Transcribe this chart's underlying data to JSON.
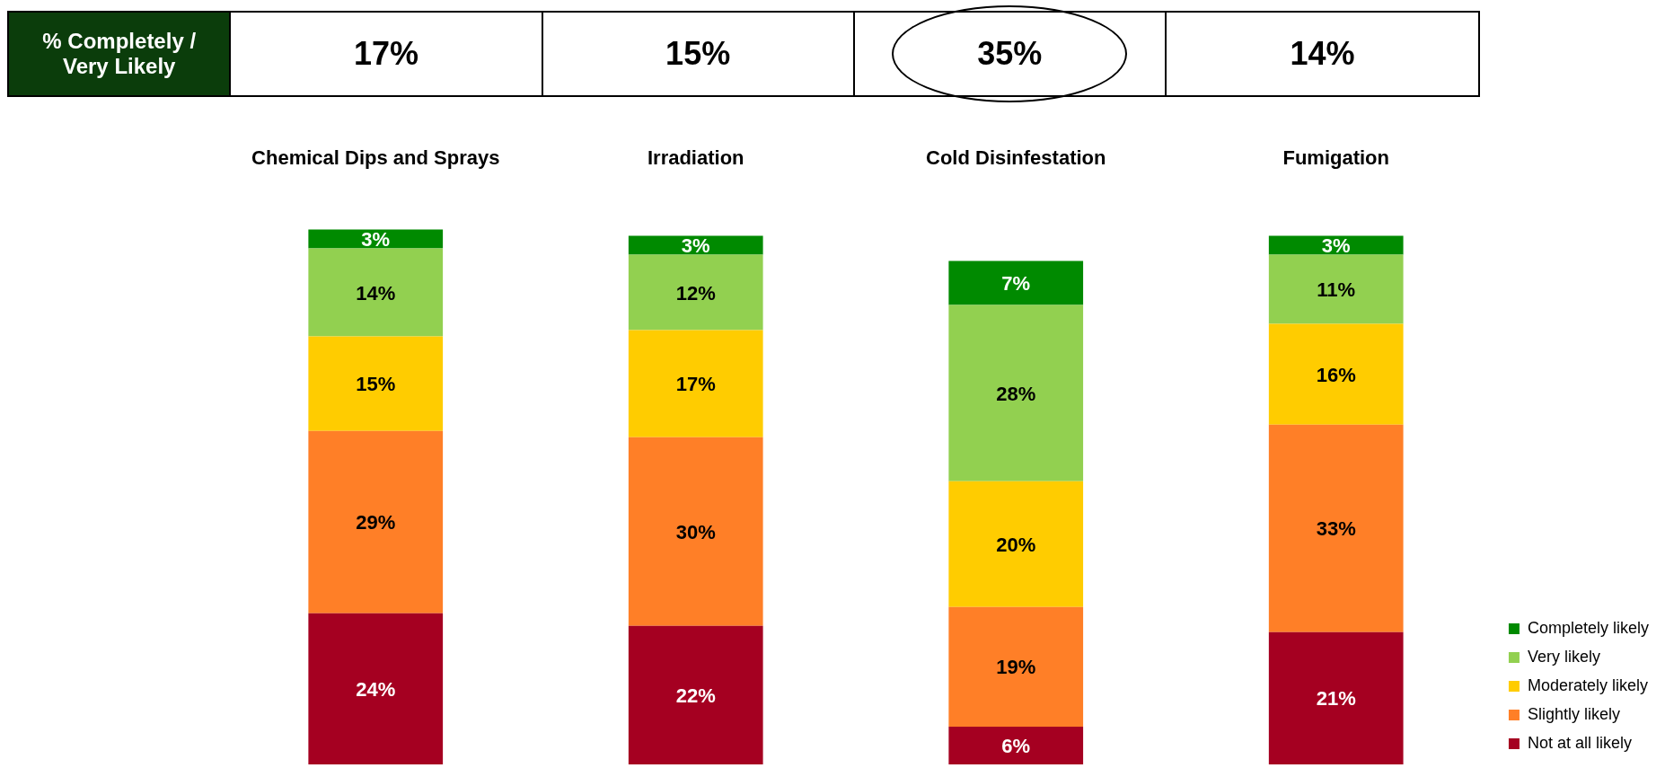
{
  "chart_data": {
    "type": "bar",
    "stacked": true,
    "categories": [
      "Chemical Dips and Sprays",
      "Irradiation",
      "Cold Disinfestation",
      "Fumigation"
    ],
    "series": [
      {
        "name": "Not at all likely",
        "color": "#a50021",
        "values": [
          24,
          22,
          6,
          21
        ],
        "value_labels": [
          "24%",
          "22%",
          "6%",
          "21%"
        ]
      },
      {
        "name": "Slightly likely",
        "color": "#ff7f27",
        "values": [
          29,
          30,
          19,
          33
        ],
        "value_labels": [
          "29%",
          "30%",
          "19%",
          "33%"
        ]
      },
      {
        "name": "Moderately likely",
        "color": "#ffcc00",
        "values": [
          15,
          17,
          20,
          16
        ],
        "value_labels": [
          "15%",
          "17%",
          "20%",
          "16%"
        ]
      },
      {
        "name": "Very likely",
        "color": "#92d050",
        "values": [
          14,
          12,
          28,
          11
        ],
        "value_labels": [
          "14%",
          "12%",
          "28%",
          "11%"
        ]
      },
      {
        "name": "Completely likely",
        "color": "#008a00",
        "values": [
          3,
          3,
          7,
          3
        ],
        "value_labels": [
          "3%",
          "3%",
          "7%",
          "3%"
        ]
      }
    ],
    "legend": "bottom right",
    "grid": false,
    "annotations": [
      "% Completely / Very Likely",
      "17%",
      "15%",
      "35%",
      "14%"
    ]
  }
}
